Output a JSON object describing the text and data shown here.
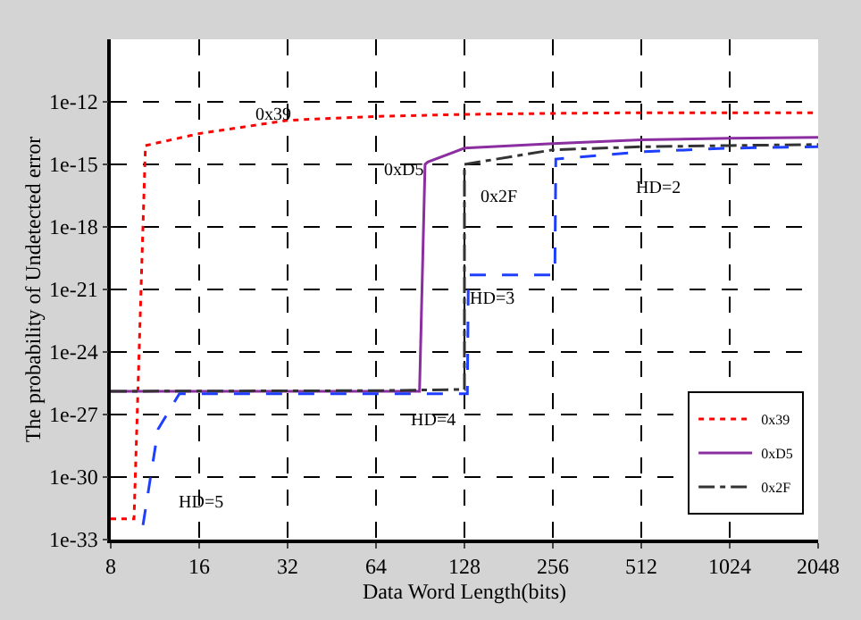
{
  "chart_data": {
    "type": "line",
    "xlabel": "Data Word Length(bits)",
    "ylabel": "The probability of Undetected error",
    "log": "xy",
    "grid": true,
    "legend": "bottom right",
    "xlim": [
      8,
      2048
    ],
    "xticks": [
      8,
      16,
      32,
      64,
      128,
      256,
      512,
      1024,
      2048
    ],
    "ylim": [
      1e-33,
      1e-09
    ],
    "yticks": [
      {
        "value": 1e-33,
        "label": "1e-33"
      },
      {
        "value": 1e-30,
        "label": "1e-30"
      },
      {
        "value": 1e-27,
        "label": "1e-27"
      },
      {
        "value": 1e-24,
        "label": "1e-24"
      },
      {
        "value": 1e-21,
        "label": "1e-21"
      },
      {
        "value": 1e-18,
        "label": "1e-18"
      },
      {
        "value": 1e-15,
        "label": "1e-15"
      },
      {
        "value": 1e-12,
        "label": "1e-12"
      }
    ],
    "series": [
      {
        "name": "0x39",
        "color": "#ff0000",
        "line_style": "dotted",
        "x": [
          8,
          9.6,
          10.5,
          16,
          32,
          64,
          128,
          256,
          512,
          1024,
          2048
        ],
        "values": [
          1e-32,
          1e-32,
          8e-15,
          3e-14,
          1.3e-13,
          2e-13,
          2.5e-13,
          2.8e-13,
          3e-13,
          3e-13,
          3e-13
        ]
      },
      {
        "name": "0xD5",
        "color": "#8b2fa0",
        "line_style": "solid",
        "x": [
          8,
          90,
          94,
          96,
          128,
          256,
          512,
          1024,
          2048
        ],
        "values": [
          1.3e-26,
          1.3e-26,
          1e-15,
          1.3e-15,
          6e-15,
          1e-14,
          1.5e-14,
          1.8e-14,
          2e-14
        ]
      },
      {
        "name": "0x2F",
        "color": "#333333",
        "line_style": "dashdot",
        "x": [
          8,
          64,
          128,
          128,
          256,
          512,
          1024,
          2048
        ],
        "values": [
          1.3e-26,
          1.4e-26,
          1.6e-26,
          1e-15,
          5e-15,
          7e-15,
          8e-15,
          9e-15
        ]
      },
      {
        "color": "#1f3fff",
        "line_style": "dashed",
        "x": [
          10.3,
          11.6,
          13.7,
          131,
          132,
          260,
          262,
          512,
          1024,
          2048
        ],
        "values": [
          5e-33,
          2e-28,
          1e-26,
          1e-26,
          5e-21,
          5e-21,
          1.8e-15,
          4e-15,
          6e-15,
          7e-15
        ]
      }
    ],
    "annotations": [
      "0x39",
      "0xD5",
      "0x2F",
      "HD=2",
      "HD=3",
      "HD=4",
      "HD=5"
    ]
  }
}
